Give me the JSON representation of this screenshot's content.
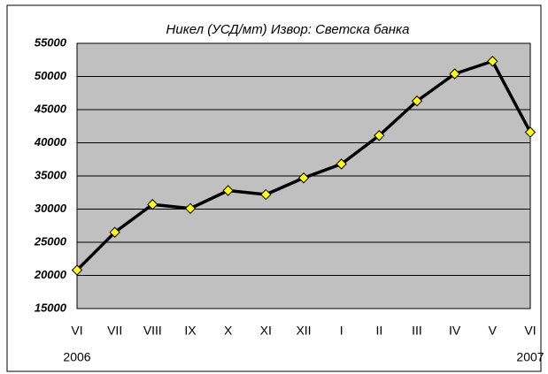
{
  "chart_data": {
    "type": "line",
    "title": "Никел (УСД/мт)  Извор: Светска банка",
    "categories": [
      "VI",
      "VII",
      "VIII",
      "IX",
      "X",
      "XI",
      "XII",
      "I",
      "II",
      "III",
      "IV",
      "V",
      "VI"
    ],
    "year_labels": [
      "2006",
      null,
      null,
      null,
      null,
      null,
      null,
      null,
      null,
      null,
      null,
      null,
      "2007"
    ],
    "series": [
      {
        "name": "Никел",
        "color": "#000000",
        "marker_color": "#ffff00",
        "values": [
          20800,
          26500,
          30700,
          30100,
          32800,
          32200,
          34700,
          36800,
          41100,
          46300,
          50400,
          52300,
          41600
        ]
      }
    ],
    "ylim": [
      15000,
      55000
    ],
    "yticks": [
      15000,
      20000,
      25000,
      30000,
      35000,
      40000,
      45000,
      50000,
      55000
    ],
    "grid": true,
    "plot_background": "#c0c0c0"
  }
}
